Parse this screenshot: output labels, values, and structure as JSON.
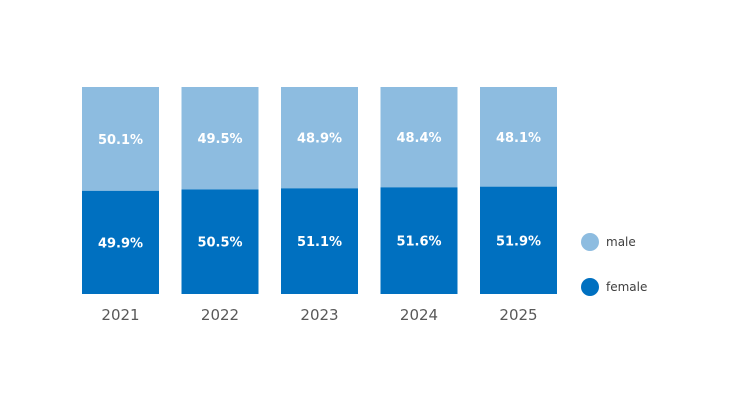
{
  "chart_data": {
    "type": "bar",
    "stacked": true,
    "categories": [
      "2021",
      "2022",
      "2023",
      "2024",
      "2025"
    ],
    "series": [
      {
        "name": "female",
        "color": "#0070C0",
        "values": [
          49.9,
          50.5,
          51.1,
          51.6,
          51.9
        ],
        "labels": [
          "49.9%",
          "50.5%",
          "51.1%",
          "51.6%",
          "51.9%"
        ]
      },
      {
        "name": "male",
        "color": "#8DBCE0",
        "values": [
          50.1,
          49.5,
          48.9,
          48.4,
          48.1
        ],
        "labels": [
          "50.1%",
          "49.5%",
          "48.9%",
          "48.4%",
          "48.1%"
        ]
      }
    ],
    "ylim": [
      0,
      100
    ],
    "legend": {
      "placement": "right",
      "order": [
        "male",
        "female"
      ]
    },
    "grid": false
  }
}
